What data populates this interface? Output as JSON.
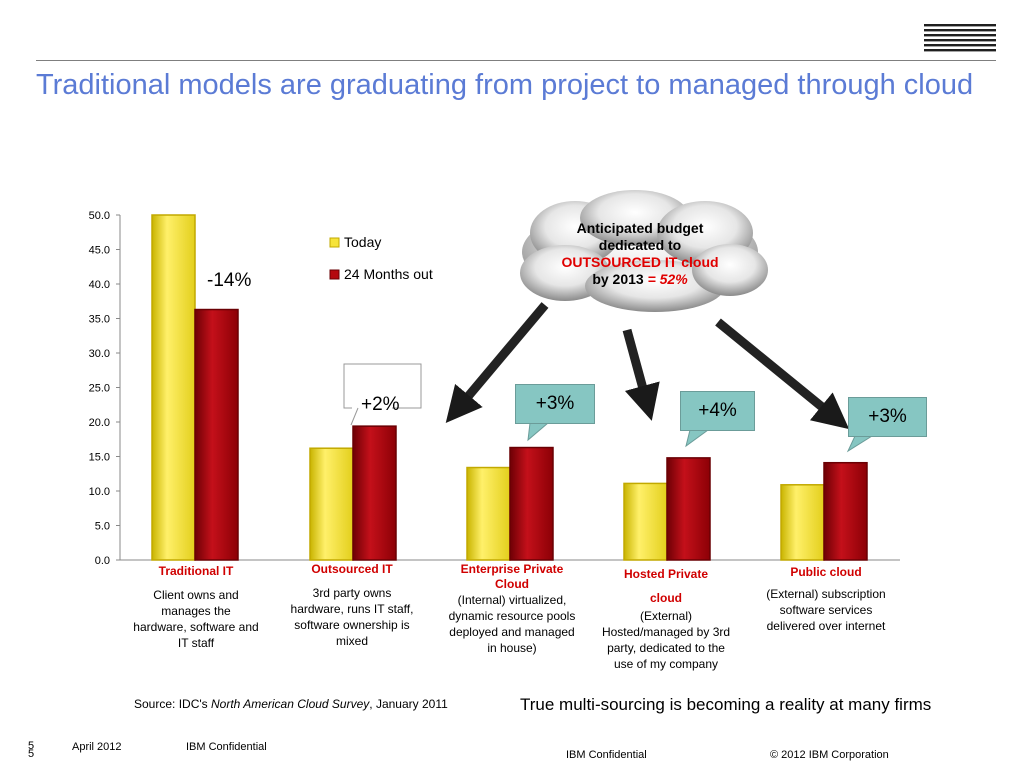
{
  "title": "Traditional models are graduating from project to managed through cloud",
  "logo_text": "IBM",
  "chart_data": {
    "type": "bar",
    "categories": [
      "Traditional IT",
      "Outsourced IT",
      "Enterprise Private Cloud",
      "Hosted Private cloud",
      "Public cloud"
    ],
    "series": [
      {
        "name": "Today",
        "values": [
          50.0,
          16.2,
          13.4,
          11.1,
          10.9
        ],
        "color": "#f6e43a"
      },
      {
        "name": "24 Months out",
        "values": [
          36.3,
          19.4,
          16.3,
          14.8,
          14.1
        ],
        "color": "#b5080e"
      }
    ],
    "ylim": [
      0,
      50
    ],
    "yticks": [
      "0.0",
      "5.0",
      "10.0",
      "15.0",
      "20.0",
      "25.0",
      "30.0",
      "35.0",
      "40.0",
      "45.0",
      "50.0"
    ],
    "ytick_values": [
      0,
      5,
      10,
      15,
      20,
      25,
      30,
      35,
      40,
      45,
      50
    ],
    "legend_position": "top-center",
    "grid": false
  },
  "annotations": {
    "traditional": "-14%",
    "outsourced": "+2%",
    "enterprise": "+3%",
    "hosted": "+4%",
    "public": "+3%"
  },
  "cloud": {
    "line1": "Anticipated budget",
    "line2": "dedicated to",
    "line3": "OUTSOURCED IT cloud",
    "line4_a": "by 2013",
    "line4_b": "= 52%"
  },
  "categories": {
    "traditional": {
      "head": "Traditional IT",
      "desc": "Client owns and manages the hardware, software and IT staff"
    },
    "outsourced": {
      "head": "Outsourced IT",
      "desc": "3rd party owns hardware, runs IT staff, software ownership is mixed"
    },
    "enterprise": {
      "head": "Enterprise Private Cloud",
      "desc": "(Internal) virtualized, dynamic resource pools deployed and managed in house)"
    },
    "hosted": {
      "head": "Hosted Private cloud",
      "desc": "(External) Hosted/managed by 3rd party, dedicated to the use of my company"
    },
    "public": {
      "head": "Public cloud",
      "desc": "(External) subscription software services delivered over internet"
    }
  },
  "source": {
    "prefix": "Source: IDC's ",
    "italic": "North American Cloud Survey",
    "suffix": ", January 2011"
  },
  "tagline": "True multi-sourcing is becoming a reality at many firms",
  "footer": {
    "page_top": "5",
    "page_bottom": "5",
    "date": "April 2012",
    "confidential_left": "IBM Confidential",
    "confidential_center": "IBM Confidential",
    "copyright": "© 2012 IBM Corporation"
  }
}
